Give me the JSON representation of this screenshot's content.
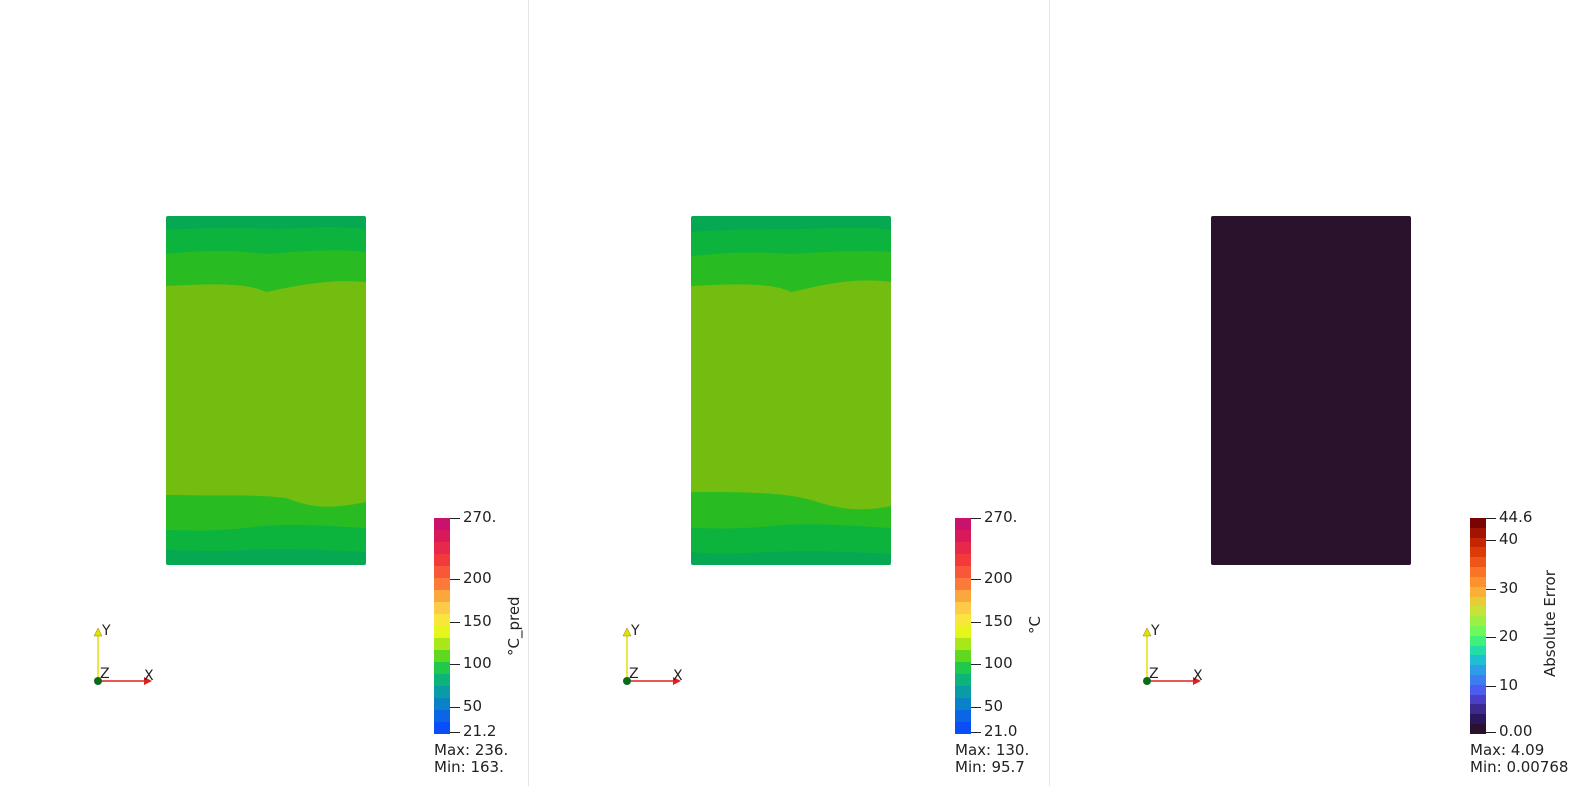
{
  "viewports": [
    {
      "title": "°C_pred",
      "ticks": [
        "270.",
        "200",
        "150",
        "100",
        "50",
        "21.2"
      ],
      "stats": {
        "max": "Max: 236.",
        "min": "Min: 163."
      },
      "plate": "temperature",
      "colormap": "rainbow"
    },
    {
      "title": "°C",
      "ticks": [
        "270.",
        "200",
        "150",
        "100",
        "50",
        "21.0"
      ],
      "stats": {
        "max": "Max: 130.",
        "min": "Min: 95.7"
      },
      "plate": "temperature",
      "colormap": "rainbow"
    },
    {
      "title": "Absolute Error",
      "ticks": [
        "44.6",
        "40",
        "30",
        "20",
        "10",
        "0.00"
      ],
      "stats": {
        "max": "Max: 4.09",
        "min": "Min: 0.00768"
      },
      "plate": "error",
      "colormap": "turbo"
    }
  ],
  "axes": {
    "x": "X",
    "y": "Y",
    "z": "Z"
  },
  "colors": {
    "plate_edge": "#07a852",
    "plate_band2": "#0cb43e",
    "plate_band3": "#28bb22",
    "plate_core": "#72bd10",
    "error_fill": "#2a112c",
    "x_axis": "#e02020",
    "y_axis": "#e6e000",
    "origin": "#0a6a1a"
  }
}
